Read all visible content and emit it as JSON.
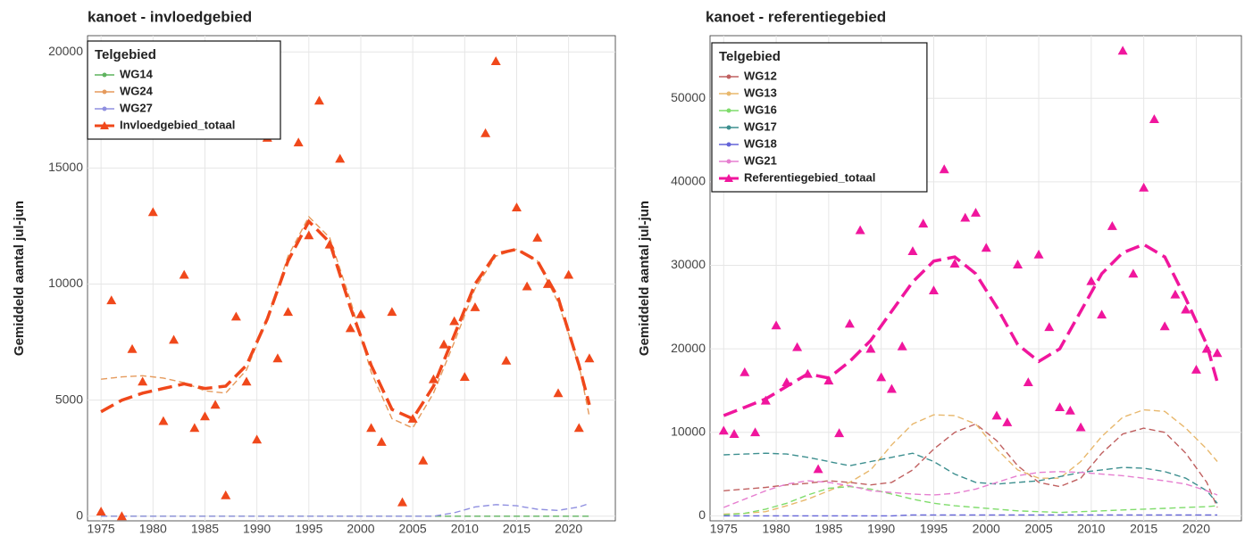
{
  "chart_data": [
    {
      "type": "scatter",
      "title": "kanoet - invloedgebied",
      "ylabel": "Gemiddeld aantal jul-jun",
      "legend_title": "Telgebied",
      "grid": true,
      "xlim": [
        1973.7,
        2024.5
      ],
      "xticks": [
        1975,
        1980,
        1985,
        1990,
        1995,
        2000,
        2005,
        2010,
        2015,
        2020
      ],
      "ylim": [
        -200,
        20700
      ],
      "yticks": [
        0,
        5000,
        10000,
        15000,
        20000
      ],
      "x": [
        1975,
        1976,
        1977,
        1978,
        1979,
        1980,
        1981,
        1982,
        1983,
        1984,
        1985,
        1986,
        1987,
        1988,
        1989,
        1990,
        1991,
        1992,
        1993,
        1994,
        1995,
        1996,
        1997,
        1998,
        1999,
        2000,
        2001,
        2002,
        2003,
        2004,
        2005,
        2006,
        2007,
        2008,
        2009,
        2010,
        2011,
        2012,
        2013,
        2014,
        2015,
        2016,
        2017,
        2018,
        2019,
        2020,
        2021,
        2022
      ],
      "trend_x": [
        1975,
        1977,
        1979,
        1981,
        1983,
        1985,
        1987,
        1989,
        1991,
        1993,
        1995,
        1997,
        1999,
        2001,
        2003,
        2005,
        2007,
        2009,
        2011,
        2013,
        2015,
        2017,
        2019,
        2021,
        2022
      ],
      "series": [
        {
          "name": "WG14",
          "color": "#5fb35f",
          "trend": [
            0,
            0,
            0,
            0,
            0,
            0,
            0,
            0,
            0,
            0,
            0,
            0,
            0,
            0,
            0,
            0,
            0,
            0,
            0,
            0,
            0,
            0,
            0,
            0,
            0
          ]
        },
        {
          "name": "WG24",
          "color": "#e59a5c",
          "trend": [
            5900,
            6000,
            6050,
            5950,
            5750,
            5400,
            5300,
            6300,
            8500,
            11200,
            12900,
            12000,
            9300,
            6200,
            4200,
            3800,
            5300,
            7500,
            9800,
            11200,
            11500,
            11000,
            9200,
            6500,
            4300
          ]
        },
        {
          "name": "WG27",
          "color": "#8f8fe0",
          "trend": [
            0,
            0,
            0,
            0,
            0,
            0,
            0,
            0,
            0,
            0,
            0,
            0,
            0,
            0,
            0,
            0,
            0,
            150,
            400,
            500,
            450,
            300,
            250,
            400,
            550
          ]
        },
        {
          "name": "Invloedgebied_totaal",
          "color": "#f0481b",
          "total": true,
          "values": [
            200,
            9300,
            0,
            7200,
            5800,
            13100,
            4100,
            7600,
            10400,
            3800,
            4300,
            4800,
            900,
            8600,
            5800,
            3300,
            16300,
            6800,
            8800,
            16100,
            12100,
            17900,
            11700,
            15400,
            8100,
            8700,
            3800,
            3200,
            8800,
            600,
            4200,
            2400,
            5900,
            7400,
            8400,
            6000,
            9000,
            16500,
            19600,
            6700,
            13300,
            9900,
            12000,
            10000,
            5300,
            10400,
            3800,
            6800
          ],
          "trend": [
            4500,
            5000,
            5300,
            5500,
            5700,
            5500,
            5600,
            6500,
            8500,
            11000,
            12700,
            11800,
            9000,
            6500,
            4600,
            4200,
            5600,
            7800,
            10000,
            11300,
            11500,
            11000,
            9400,
            6500,
            4800
          ]
        }
      ]
    },
    {
      "type": "scatter",
      "title": "kanoet - referentiegebied",
      "ylabel": "Gemiddeld aantal jul-jun",
      "legend_title": "Telgebied",
      "grid": true,
      "xlim": [
        1973.7,
        2024.3
      ],
      "xticks": [
        1975,
        1980,
        1985,
        1990,
        1995,
        2000,
        2005,
        2010,
        2015,
        2020
      ],
      "ylim": [
        -600,
        57500
      ],
      "yticks": [
        0,
        10000,
        20000,
        30000,
        40000,
        50000
      ],
      "x": [
        1975,
        1976,
        1977,
        1978,
        1979,
        1980,
        1981,
        1982,
        1983,
        1984,
        1985,
        1986,
        1987,
        1988,
        1989,
        1990,
        1991,
        1992,
        1993,
        1994,
        1995,
        1996,
        1997,
        1998,
        1999,
        2000,
        2001,
        2002,
        2003,
        2004,
        2005,
        2006,
        2007,
        2008,
        2009,
        2010,
        2011,
        2012,
        2013,
        2014,
        2015,
        2016,
        2017,
        2018,
        2019,
        2020,
        2021,
        2022
      ],
      "trend_x": [
        1975,
        1977,
        1979,
        1981,
        1983,
        1985,
        1987,
        1989,
        1991,
        1993,
        1995,
        1997,
        1999,
        2001,
        2003,
        2005,
        2007,
        2009,
        2011,
        2013,
        2015,
        2017,
        2019,
        2021,
        2022
      ],
      "series": [
        {
          "name": "WG12",
          "color": "#c06060",
          "trend": [
            3000,
            3200,
            3400,
            3700,
            3900,
            4200,
            4000,
            3700,
            4000,
            5500,
            8000,
            10000,
            11000,
            9000,
            6000,
            4000,
            3500,
            4500,
            7500,
            9800,
            10500,
            10000,
            7500,
            4000,
            1000
          ]
        },
        {
          "name": "WG13",
          "color": "#e8b86d",
          "trend": [
            200,
            300,
            500,
            1200,
            2000,
            3000,
            4000,
            5500,
            8500,
            11000,
            12100,
            12000,
            11000,
            8000,
            5500,
            4500,
            4500,
            6500,
            9500,
            11800,
            12700,
            12500,
            10500,
            8000,
            6500
          ]
        },
        {
          "name": "WG16",
          "color": "#7fdc6b",
          "trend": [
            100,
            300,
            800,
            1500,
            2500,
            3300,
            3500,
            3200,
            2600,
            2000,
            1500,
            1200,
            1000,
            800,
            600,
            500,
            400,
            500,
            600,
            700,
            800,
            900,
            1000,
            1100,
            1200
          ]
        },
        {
          "name": "WG17",
          "color": "#3d8f8f",
          "trend": [
            7300,
            7400,
            7500,
            7400,
            7000,
            6500,
            6000,
            6500,
            7000,
            7500,
            6500,
            5000,
            4000,
            3800,
            4000,
            4200,
            4700,
            5200,
            5500,
            5800,
            5700,
            5300,
            4500,
            3000,
            1500
          ]
        },
        {
          "name": "WG18",
          "color": "#6464d8",
          "trend": [
            0,
            0,
            0,
            0,
            0,
            0,
            0,
            0,
            0,
            100,
            100,
            100,
            100,
            100,
            100,
            100,
            100,
            100,
            100,
            100,
            100,
            100,
            100,
            100,
            100
          ]
        },
        {
          "name": "WG21",
          "color": "#e67fd0",
          "trend": [
            1000,
            2000,
            3000,
            3800,
            4200,
            4000,
            3600,
            3000,
            2800,
            2600,
            2500,
            2700,
            3200,
            4000,
            4800,
            5200,
            5300,
            5200,
            5000,
            4800,
            4500,
            4200,
            3800,
            3000,
            2500
          ]
        },
        {
          "name": "Referentiegebied_totaal",
          "color": "#f0169d",
          "total": true,
          "values": [
            10200,
            9800,
            17200,
            10000,
            13800,
            22800,
            16000,
            20200,
            17000,
            5600,
            16200,
            9900,
            23000,
            34200,
            20000,
            16600,
            15200,
            20300,
            31700,
            35000,
            27000,
            41500,
            30200,
            35700,
            36300,
            32100,
            12000,
            11200,
            30100,
            16000,
            31300,
            22600,
            13000,
            12600,
            10600,
            28100,
            24100,
            34700,
            55700,
            29000,
            39300,
            47500,
            22700,
            26500,
            24700,
            17500,
            20000,
            19500
          ],
          "trend": [
            12000,
            13000,
            14000,
            15500,
            17000,
            16500,
            18500,
            21000,
            24500,
            28000,
            30500,
            31000,
            29000,
            25000,
            20500,
            18500,
            20000,
            24500,
            29000,
            31500,
            32500,
            31000,
            26000,
            20500,
            16000
          ]
        }
      ]
    }
  ]
}
